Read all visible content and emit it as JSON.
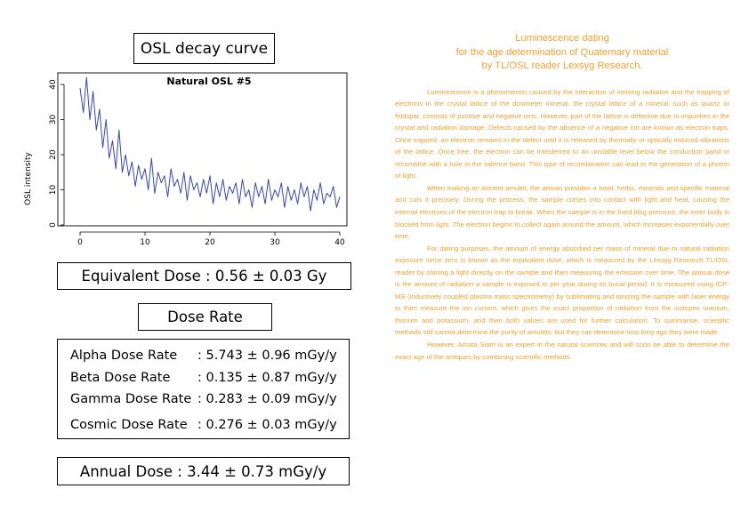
{
  "osl_panel": {
    "title": "OSL decay curve"
  },
  "chart_data": {
    "type": "line",
    "title": "Natural OSL #5",
    "xlabel": "",
    "ylabel": "OSL intensity",
    "xlim": [
      0,
      40
    ],
    "ylim": [
      0,
      42
    ],
    "x_ticks": [
      "0",
      "10",
      "20",
      "30",
      "40"
    ],
    "y_ticks": [
      "0",
      "10",
      "20",
      "30",
      "40"
    ],
    "grid": false,
    "series": [
      {
        "color": "#3648a8",
        "x": [
          0,
          0.5,
          1,
          1.5,
          2,
          2.5,
          3,
          3.5,
          4,
          4.5,
          5,
          5.5,
          6,
          6.5,
          7,
          7.5,
          8,
          8.5,
          9,
          9.5,
          10,
          10.5,
          11,
          11.5,
          12,
          12.5,
          13,
          13.5,
          14,
          14.5,
          15,
          15.5,
          16,
          16.5,
          17,
          17.5,
          18,
          18.5,
          19,
          19.5,
          20,
          20.5,
          21,
          21.5,
          22,
          22.5,
          23,
          23.5,
          24,
          24.5,
          25,
          25.5,
          26,
          26.5,
          27,
          27.5,
          28,
          28.5,
          29,
          29.5,
          30,
          30.5,
          31,
          31.5,
          32,
          32.5,
          33,
          33.5,
          34,
          34.5,
          35,
          35.5,
          36,
          36.5,
          37,
          37.5,
          38,
          38.5,
          39,
          39.5,
          40
        ],
        "y": [
          39,
          32,
          42,
          30,
          38,
          27,
          33,
          22,
          30,
          19,
          24,
          16,
          27,
          15,
          20,
          14,
          18,
          11,
          17,
          13,
          16,
          10,
          19,
          9,
          15,
          12,
          14,
          8,
          16,
          11,
          13,
          9,
          15,
          7,
          14,
          10,
          12,
          8,
          13,
          9,
          14,
          6,
          12,
          8,
          13,
          7,
          11,
          9,
          12,
          6,
          13,
          8,
          10,
          5,
          12,
          8,
          11,
          6,
          13,
          7,
          10,
          8,
          12,
          5,
          11,
          7,
          10,
          6,
          12,
          8,
          11,
          4,
          10,
          7,
          12,
          6,
          9,
          8,
          11,
          5,
          8
        ]
      }
    ]
  },
  "equivalent_dose": {
    "text": "Equivalent Dose : 0.56 ± 0.03 Gy"
  },
  "dose_rate": {
    "title": "Dose Rate",
    "rows": [
      {
        "label": "Alpha Dose Rate",
        "value": ": 5.743 ± 0.96 mGy/y"
      },
      {
        "label": "Beta Dose Rate",
        "value": ": 0.135 ± 0.87 mGy/y"
      },
      {
        "label": "Gamma Dose Rate",
        "value": ": 0.283 ± 0.09 mGy/y"
      },
      {
        "label": "Cosmic Dose Rate",
        "value": ": 0.276 ± 0.03 mGy/y"
      }
    ]
  },
  "annual_dose": {
    "text": "Annual Dose : 3.44 ± 0.73 mGy/y"
  },
  "article": {
    "heading_lines": [
      "Luminescence dating",
      "for the age determination of Quaternary material",
      "by TL/OSL reader Lexsyg Research."
    ],
    "paragraphs": [
      "Luminescence is a phenomenon caused by the interaction of ionising radiation and the trapping of electrons in the crystal lattice of the dosimeter mineral. the crystal lattice of a mineral, such as quartz or feldspar, consists of positive and negative ions. However, part of the lattice is defective due to impurities in the crystal and radiation damage. Defects caused by the absence of a negative ion are known as electron traps. Once trapped, an electron remains in the defect until it is released by thermally or optically induced vibrations of the lattice. Once free, the electron can be transferred to an unstable level below the conduction band or recombine with a hole in the valence band. This type of recombination can lead to the generation of a photon of light.",
      "When making an ancient amulet, the artisan provides a bowl, herbs, minerals and specific material and cuts it precisely. During the process, the sample comes into contact with light and heat, causing the internal electrons of the electron trap to break. When the sample is in the fixed blog pressure, the inner body is blocked from light. The electron begins to collect again around the amount, which increases exponentially over time.",
      "For dating purposes, the amount of energy absorbed per mass of mineral due to natural radiation exposure since zero is known as the equivalent dose, which is measured by the Lexsyg Research TL/OSL reader by shining a light directly on the sample and then measuring the emission over time. The annual dose is the amount of radiation a sample is exposed to per year during its burial period. It is measured using ICP-MS (inductively coupled plasma mass spectrometry) by sublimating and ionizing the sample with laser energy to then measure the ion current, which gives the exact proportion of radiation from the isotopes uranium, thorium and potassium, and then both values are used for further calculation. To summarise, scientific methods still cannot determine the purity of amulets, but they can determine how long ago they were made.",
      "However, Amata Siam is an expert in the natural sciences and will soon be able to determine the exact age of the antiques by combining scientific methods."
    ]
  }
}
